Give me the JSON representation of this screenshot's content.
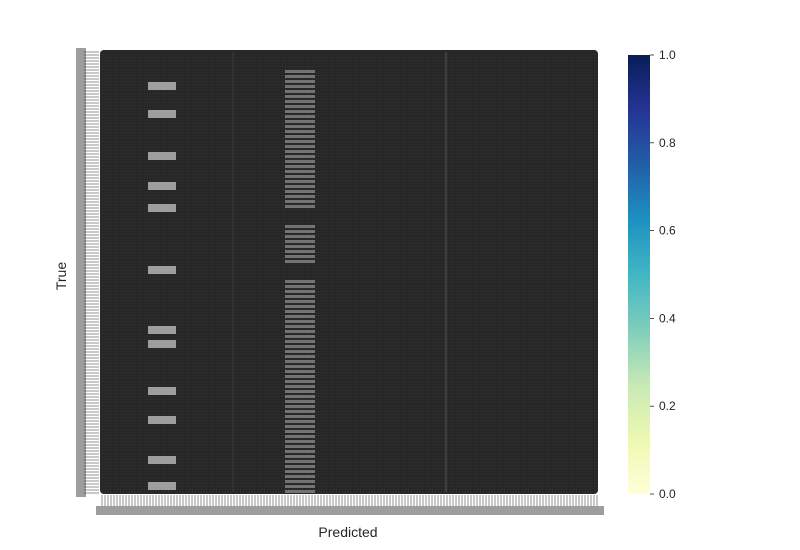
{
  "chart_data": {
    "type": "heatmap",
    "title": "",
    "xlabel": "Predicted",
    "ylabel": "True",
    "annotated": true,
    "cell_color": "#262626",
    "colormap": "YlGnBu",
    "colorbar": {
      "min": 0.0,
      "max": 1.0,
      "ticks": [
        "0.0",
        "0.2",
        "0.4",
        "0.6",
        "0.8",
        "1.0"
      ],
      "colors": [
        "#ffffd9",
        "#edf8b1",
        "#c7e9b4",
        "#7fcdbb",
        "#41b6c4",
        "#1d91c0",
        "#225ea8",
        "#253494",
        "#081d58"
      ]
    }
  }
}
